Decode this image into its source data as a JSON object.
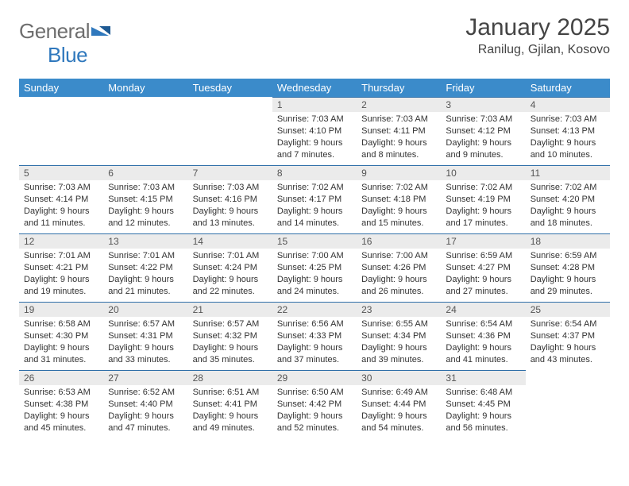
{
  "brand": {
    "part1": "General",
    "part2": "Blue"
  },
  "title": "January 2025",
  "subtitle": "Ranilug, Gjilan, Kosovo",
  "colors": {
    "header_bg": "#3b8bca",
    "header_text": "#ffffff",
    "daynum_bg": "#ebebeb",
    "row_divider": "#2f6fa8",
    "text": "#333333",
    "brand_gray": "#6e6e6e",
    "brand_blue": "#2f78bd"
  },
  "weekdays": [
    "Sunday",
    "Monday",
    "Tuesday",
    "Wednesday",
    "Thursday",
    "Friday",
    "Saturday"
  ],
  "weeks": [
    [
      null,
      null,
      null,
      {
        "n": "1",
        "sr": "7:03 AM",
        "ss": "4:10 PM",
        "dl": "9 hours and 7 minutes."
      },
      {
        "n": "2",
        "sr": "7:03 AM",
        "ss": "4:11 PM",
        "dl": "9 hours and 8 minutes."
      },
      {
        "n": "3",
        "sr": "7:03 AM",
        "ss": "4:12 PM",
        "dl": "9 hours and 9 minutes."
      },
      {
        "n": "4",
        "sr": "7:03 AM",
        "ss": "4:13 PM",
        "dl": "9 hours and 10 minutes."
      }
    ],
    [
      {
        "n": "5",
        "sr": "7:03 AM",
        "ss": "4:14 PM",
        "dl": "9 hours and 11 minutes."
      },
      {
        "n": "6",
        "sr": "7:03 AM",
        "ss": "4:15 PM",
        "dl": "9 hours and 12 minutes."
      },
      {
        "n": "7",
        "sr": "7:03 AM",
        "ss": "4:16 PM",
        "dl": "9 hours and 13 minutes."
      },
      {
        "n": "8",
        "sr": "7:02 AM",
        "ss": "4:17 PM",
        "dl": "9 hours and 14 minutes."
      },
      {
        "n": "9",
        "sr": "7:02 AM",
        "ss": "4:18 PM",
        "dl": "9 hours and 15 minutes."
      },
      {
        "n": "10",
        "sr": "7:02 AM",
        "ss": "4:19 PM",
        "dl": "9 hours and 17 minutes."
      },
      {
        "n": "11",
        "sr": "7:02 AM",
        "ss": "4:20 PM",
        "dl": "9 hours and 18 minutes."
      }
    ],
    [
      {
        "n": "12",
        "sr": "7:01 AM",
        "ss": "4:21 PM",
        "dl": "9 hours and 19 minutes."
      },
      {
        "n": "13",
        "sr": "7:01 AM",
        "ss": "4:22 PM",
        "dl": "9 hours and 21 minutes."
      },
      {
        "n": "14",
        "sr": "7:01 AM",
        "ss": "4:24 PM",
        "dl": "9 hours and 22 minutes."
      },
      {
        "n": "15",
        "sr": "7:00 AM",
        "ss": "4:25 PM",
        "dl": "9 hours and 24 minutes."
      },
      {
        "n": "16",
        "sr": "7:00 AM",
        "ss": "4:26 PM",
        "dl": "9 hours and 26 minutes."
      },
      {
        "n": "17",
        "sr": "6:59 AM",
        "ss": "4:27 PM",
        "dl": "9 hours and 27 minutes."
      },
      {
        "n": "18",
        "sr": "6:59 AM",
        "ss": "4:28 PM",
        "dl": "9 hours and 29 minutes."
      }
    ],
    [
      {
        "n": "19",
        "sr": "6:58 AM",
        "ss": "4:30 PM",
        "dl": "9 hours and 31 minutes."
      },
      {
        "n": "20",
        "sr": "6:57 AM",
        "ss": "4:31 PM",
        "dl": "9 hours and 33 minutes."
      },
      {
        "n": "21",
        "sr": "6:57 AM",
        "ss": "4:32 PM",
        "dl": "9 hours and 35 minutes."
      },
      {
        "n": "22",
        "sr": "6:56 AM",
        "ss": "4:33 PM",
        "dl": "9 hours and 37 minutes."
      },
      {
        "n": "23",
        "sr": "6:55 AM",
        "ss": "4:34 PM",
        "dl": "9 hours and 39 minutes."
      },
      {
        "n": "24",
        "sr": "6:54 AM",
        "ss": "4:36 PM",
        "dl": "9 hours and 41 minutes."
      },
      {
        "n": "25",
        "sr": "6:54 AM",
        "ss": "4:37 PM",
        "dl": "9 hours and 43 minutes."
      }
    ],
    [
      {
        "n": "26",
        "sr": "6:53 AM",
        "ss": "4:38 PM",
        "dl": "9 hours and 45 minutes."
      },
      {
        "n": "27",
        "sr": "6:52 AM",
        "ss": "4:40 PM",
        "dl": "9 hours and 47 minutes."
      },
      {
        "n": "28",
        "sr": "6:51 AM",
        "ss": "4:41 PM",
        "dl": "9 hours and 49 minutes."
      },
      {
        "n": "29",
        "sr": "6:50 AM",
        "ss": "4:42 PM",
        "dl": "9 hours and 52 minutes."
      },
      {
        "n": "30",
        "sr": "6:49 AM",
        "ss": "4:44 PM",
        "dl": "9 hours and 54 minutes."
      },
      {
        "n": "31",
        "sr": "6:48 AM",
        "ss": "4:45 PM",
        "dl": "9 hours and 56 minutes."
      },
      null
    ]
  ],
  "labels": {
    "sunrise": "Sunrise:",
    "sunset": "Sunset:",
    "daylight": "Daylight:"
  }
}
